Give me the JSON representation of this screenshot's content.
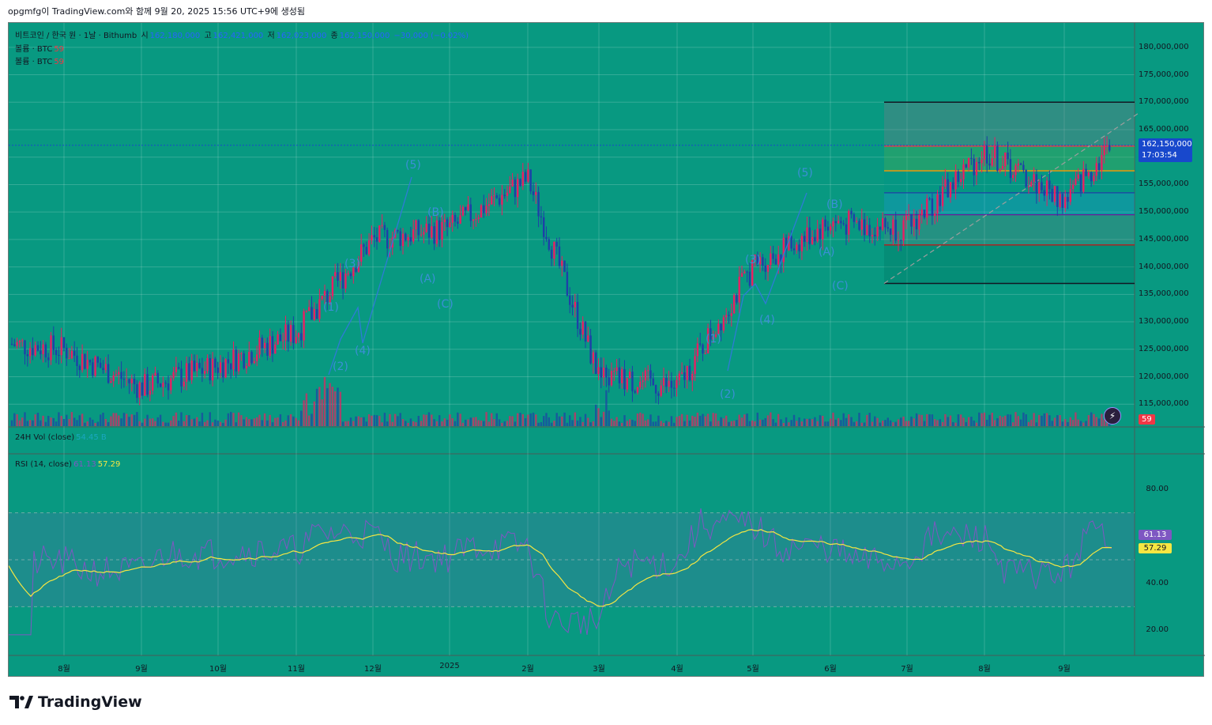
{
  "header": {
    "caption": "opgmfg이 TradingView.com와 함께 9월 20, 2025 15:56 UTC+9에 생성됨"
  },
  "legend": {
    "symbol": "비트코인 / 한국 원 · 1날 · Bithumb",
    "open_label": "시",
    "open": "162,180,000",
    "high_label": "고",
    "high": "162,421,000",
    "low_label": "저",
    "low": "162,023,000",
    "close_label": "종",
    "close": "162,150,000",
    "change": "−30,000 (−0.02%)",
    "vol1_label": "볼륨 · BTC",
    "vol1_value": "59",
    "vol2_label": "볼륨 · BTC",
    "vol2_value": "59",
    "vol24_label": "24H Vol (close)",
    "vol24_value": "54.45 B",
    "rsi_label": "RSI (14, close)",
    "rsi_value1": "61.13",
    "rsi_value2": "57.29"
  },
  "price_axis": [
    "180,000,000",
    "175,000,000",
    "170,000,000",
    "165,000,000",
    "160,000,000",
    "155,000,000",
    "150,000,000",
    "145,000,000",
    "140,000,000",
    "135,000,000",
    "130,000,000",
    "125,000,000",
    "120,000,000",
    "115,000,000"
  ],
  "last_price": {
    "value": "162,150,000",
    "countdown": "17:03:54"
  },
  "volume_tag": "59",
  "rsi_axis": [
    "80.00",
    "40.00",
    "20.00"
  ],
  "rsi_tags": {
    "rsi": "61.13",
    "ma": "57.29"
  },
  "time_axis": [
    "8월",
    "9월",
    "10월",
    "11월",
    "12월",
    "2025",
    "2월",
    "3월",
    "4월",
    "5월",
    "6월",
    "7월",
    "8월",
    "9월"
  ],
  "wave_labels": [
    "(1)",
    "(2)",
    "(3)",
    "(4)",
    "(5)",
    "(B)",
    "(A)",
    "(C)",
    "(1)",
    "(2)",
    "(3)",
    "(4)",
    "(5)",
    "(B)",
    "(A)",
    "(C)"
  ],
  "footer": {
    "brand": "TradingView"
  },
  "colors": {
    "background": "#089981",
    "up": "#e91e63",
    "down": "#1e3fa8",
    "rsi_ma": "#f5e642",
    "last_price": "#1848cc"
  },
  "chart_data": {
    "type": "candlestick",
    "title": "비트코인 / 한국 원 · 1날 · Bithumb",
    "ylim": [
      111000000,
      183000000
    ],
    "key_closes": [
      {
        "month": "8월",
        "price": 125000000
      },
      {
        "month": "9월",
        "price": 118000000
      },
      {
        "month": "10월",
        "price": 122000000
      },
      {
        "month": "11월",
        "price": 128000000
      },
      {
        "month": "12월",
        "price": 145000000
      },
      {
        "month": "2025",
        "price": 147000000
      },
      {
        "month": "2월",
        "price": 156000000
      },
      {
        "month": "3월",
        "price": 120000000
      },
      {
        "month": "4월",
        "price": 118000000
      },
      {
        "month": "5월",
        "price": 140000000
      },
      {
        "month": "6월",
        "price": 148000000
      },
      {
        "month": "7월",
        "price": 147000000
      },
      {
        "month": "8월",
        "price": 161000000
      },
      {
        "month": "9월",
        "price": 152000000
      },
      {
        "month": "9월 20",
        "price": 162150000
      }
    ],
    "fib_levels": [
      170000000,
      162000000,
      157500000,
      153500000,
      149500000,
      144000000,
      137000000
    ],
    "rsi": {
      "current": 61.13,
      "ma": 57.29,
      "upper_band": 70,
      "lower_band": 30
    }
  }
}
